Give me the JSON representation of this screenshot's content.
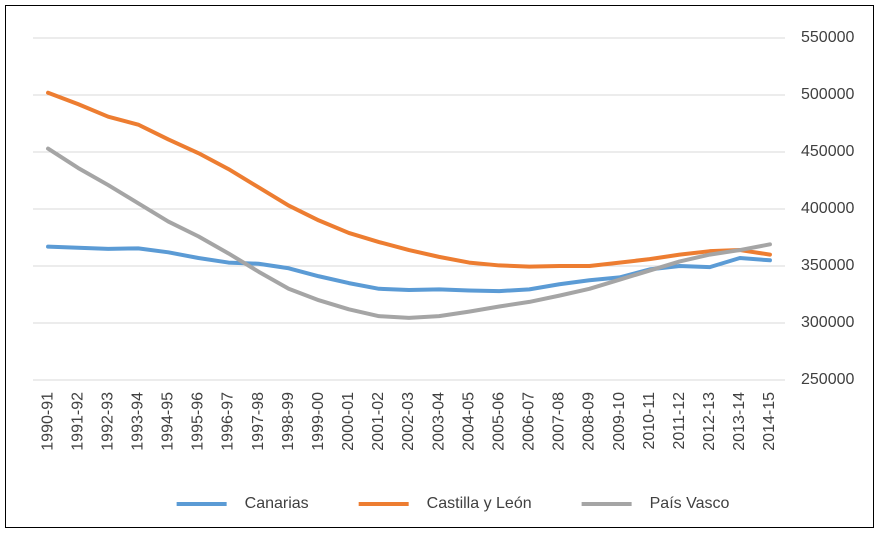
{
  "chart_data": {
    "type": "line",
    "categories": [
      "1990-91",
      "1991-92",
      "1992-93",
      "1993-94",
      "1994-95",
      "1995-96",
      "1996-97",
      "1997-98",
      "1998-99",
      "1999-00",
      "2000-01",
      "2001-02",
      "2002-03",
      "2003-04",
      "2004-05",
      "2005-06",
      "2006-07",
      "2007-08",
      "2008-09",
      "2009-10",
      "2010-11",
      "2011-12",
      "2012-13",
      "2013-14",
      "2014-15"
    ],
    "series": [
      {
        "name": "Canarias",
        "color": "#5b9bd5",
        "values": [
          367000,
          366000,
          365000,
          365500,
          362000,
          357000,
          353000,
          352000,
          348000,
          341000,
          335000,
          330000,
          329000,
          329500,
          328500,
          328000,
          329500,
          334000,
          337500,
          340000,
          347000,
          350000,
          349000,
          357000,
          355000
        ]
      },
      {
        "name": "Castilla y León",
        "color": "#ed7d31",
        "values": [
          502000,
          492000,
          481000,
          474000,
          461000,
          449000,
          435000,
          419000,
          403000,
          390000,
          379000,
          371000,
          364000,
          358000,
          353000,
          350500,
          349500,
          350000,
          350000,
          353000,
          356000,
          360000,
          363000,
          364000,
          360000
        ]
      },
      {
        "name": "País Vasco",
        "color": "#a5a5a5",
        "values": [
          453000,
          436000,
          421000,
          405000,
          389000,
          376000,
          361000,
          345000,
          330000,
          320000,
          312000,
          306000,
          304500,
          306000,
          310000,
          314500,
          318500,
          324000,
          330000,
          338000,
          346000,
          354000,
          360000,
          364000,
          369000
        ]
      }
    ],
    "ylim": [
      250000,
      550000
    ],
    "yticks": [
      250000,
      300000,
      350000,
      400000,
      450000,
      500000,
      550000
    ],
    "y_axis_side": "right",
    "grid": true,
    "legend": "bottom"
  }
}
